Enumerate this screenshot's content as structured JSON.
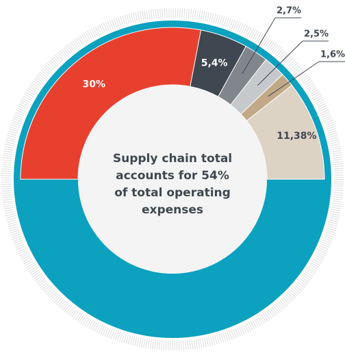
{
  "chart_data": {
    "type": "donut",
    "center_text": [
      "Supply chain total",
      "accounts for 54%",
      "of total operating",
      "expenses"
    ],
    "categories": [
      null,
      null,
      null,
      null,
      null,
      null
    ],
    "values": [
      30,
      5.4,
      2.7,
      2.5,
      1.6,
      11.38
    ],
    "value_labels": [
      "30%",
      "5,4%",
      "2,7%",
      "2,5%",
      "1,6%",
      "11,38%"
    ],
    "colors": [
      "#e8402f",
      "#3f4750",
      "#80868c",
      "#c6c9cc",
      "#c1a987",
      "#ddd3c5"
    ],
    "ring_color": "#0ba1bf"
  }
}
